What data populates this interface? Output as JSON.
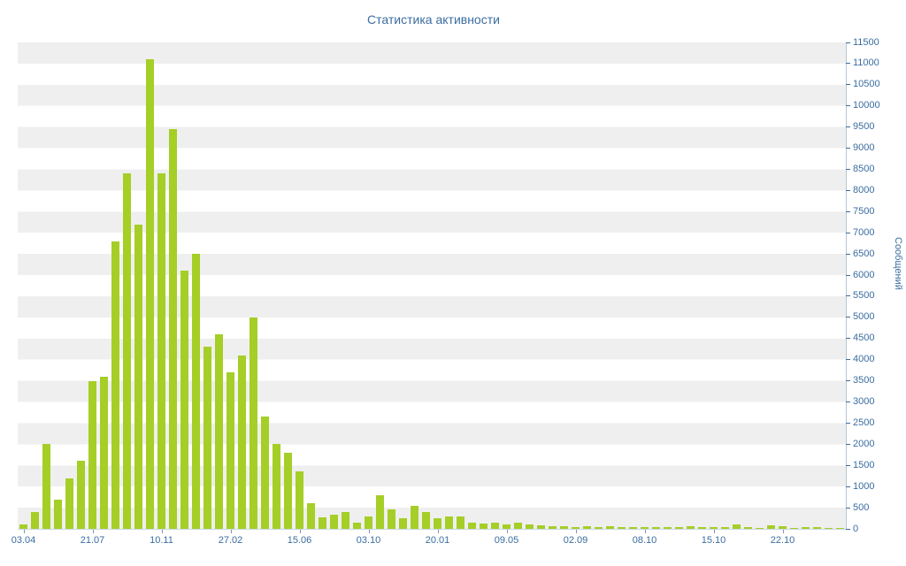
{
  "chart_data": {
    "type": "bar",
    "title": "Статистика активности",
    "ylabel": "Сообщений",
    "xlabel": "",
    "ylim": [
      0,
      11500
    ],
    "ytick_step": 500,
    "x_tick_labels": [
      "03.04",
      "21.07",
      "10.11",
      "27.02",
      "15.06",
      "03.10",
      "20.01",
      "09.05",
      "02.09",
      "08.10",
      "15.10",
      "22.10"
    ],
    "x_label_step": 6,
    "values": [
      100,
      400,
      2000,
      700,
      1200,
      1600,
      3500,
      3600,
      6800,
      8400,
      7200,
      11100,
      8400,
      9450,
      6100,
      6500,
      4300,
      4600,
      3700,
      4100,
      5000,
      2650,
      2000,
      1800,
      1350,
      600,
      280,
      330,
      400,
      150,
      300,
      800,
      450,
      250,
      550,
      400,
      250,
      300,
      300,
      150,
      120,
      150,
      100,
      150,
      100,
      80,
      60,
      60,
      50,
      60,
      50,
      60,
      50,
      40,
      50,
      40,
      50,
      40,
      60,
      50,
      40,
      50,
      100,
      40,
      30,
      80,
      60,
      30,
      40,
      40,
      30,
      30
    ],
    "colors": {
      "bar": "#a5ce27",
      "axis_text": "#3a6da0",
      "axis_line": "#b9c6d6",
      "stripe": "#efefef",
      "background": "#ffffff"
    },
    "legend": "none",
    "grid": "horizontal-bands"
  }
}
